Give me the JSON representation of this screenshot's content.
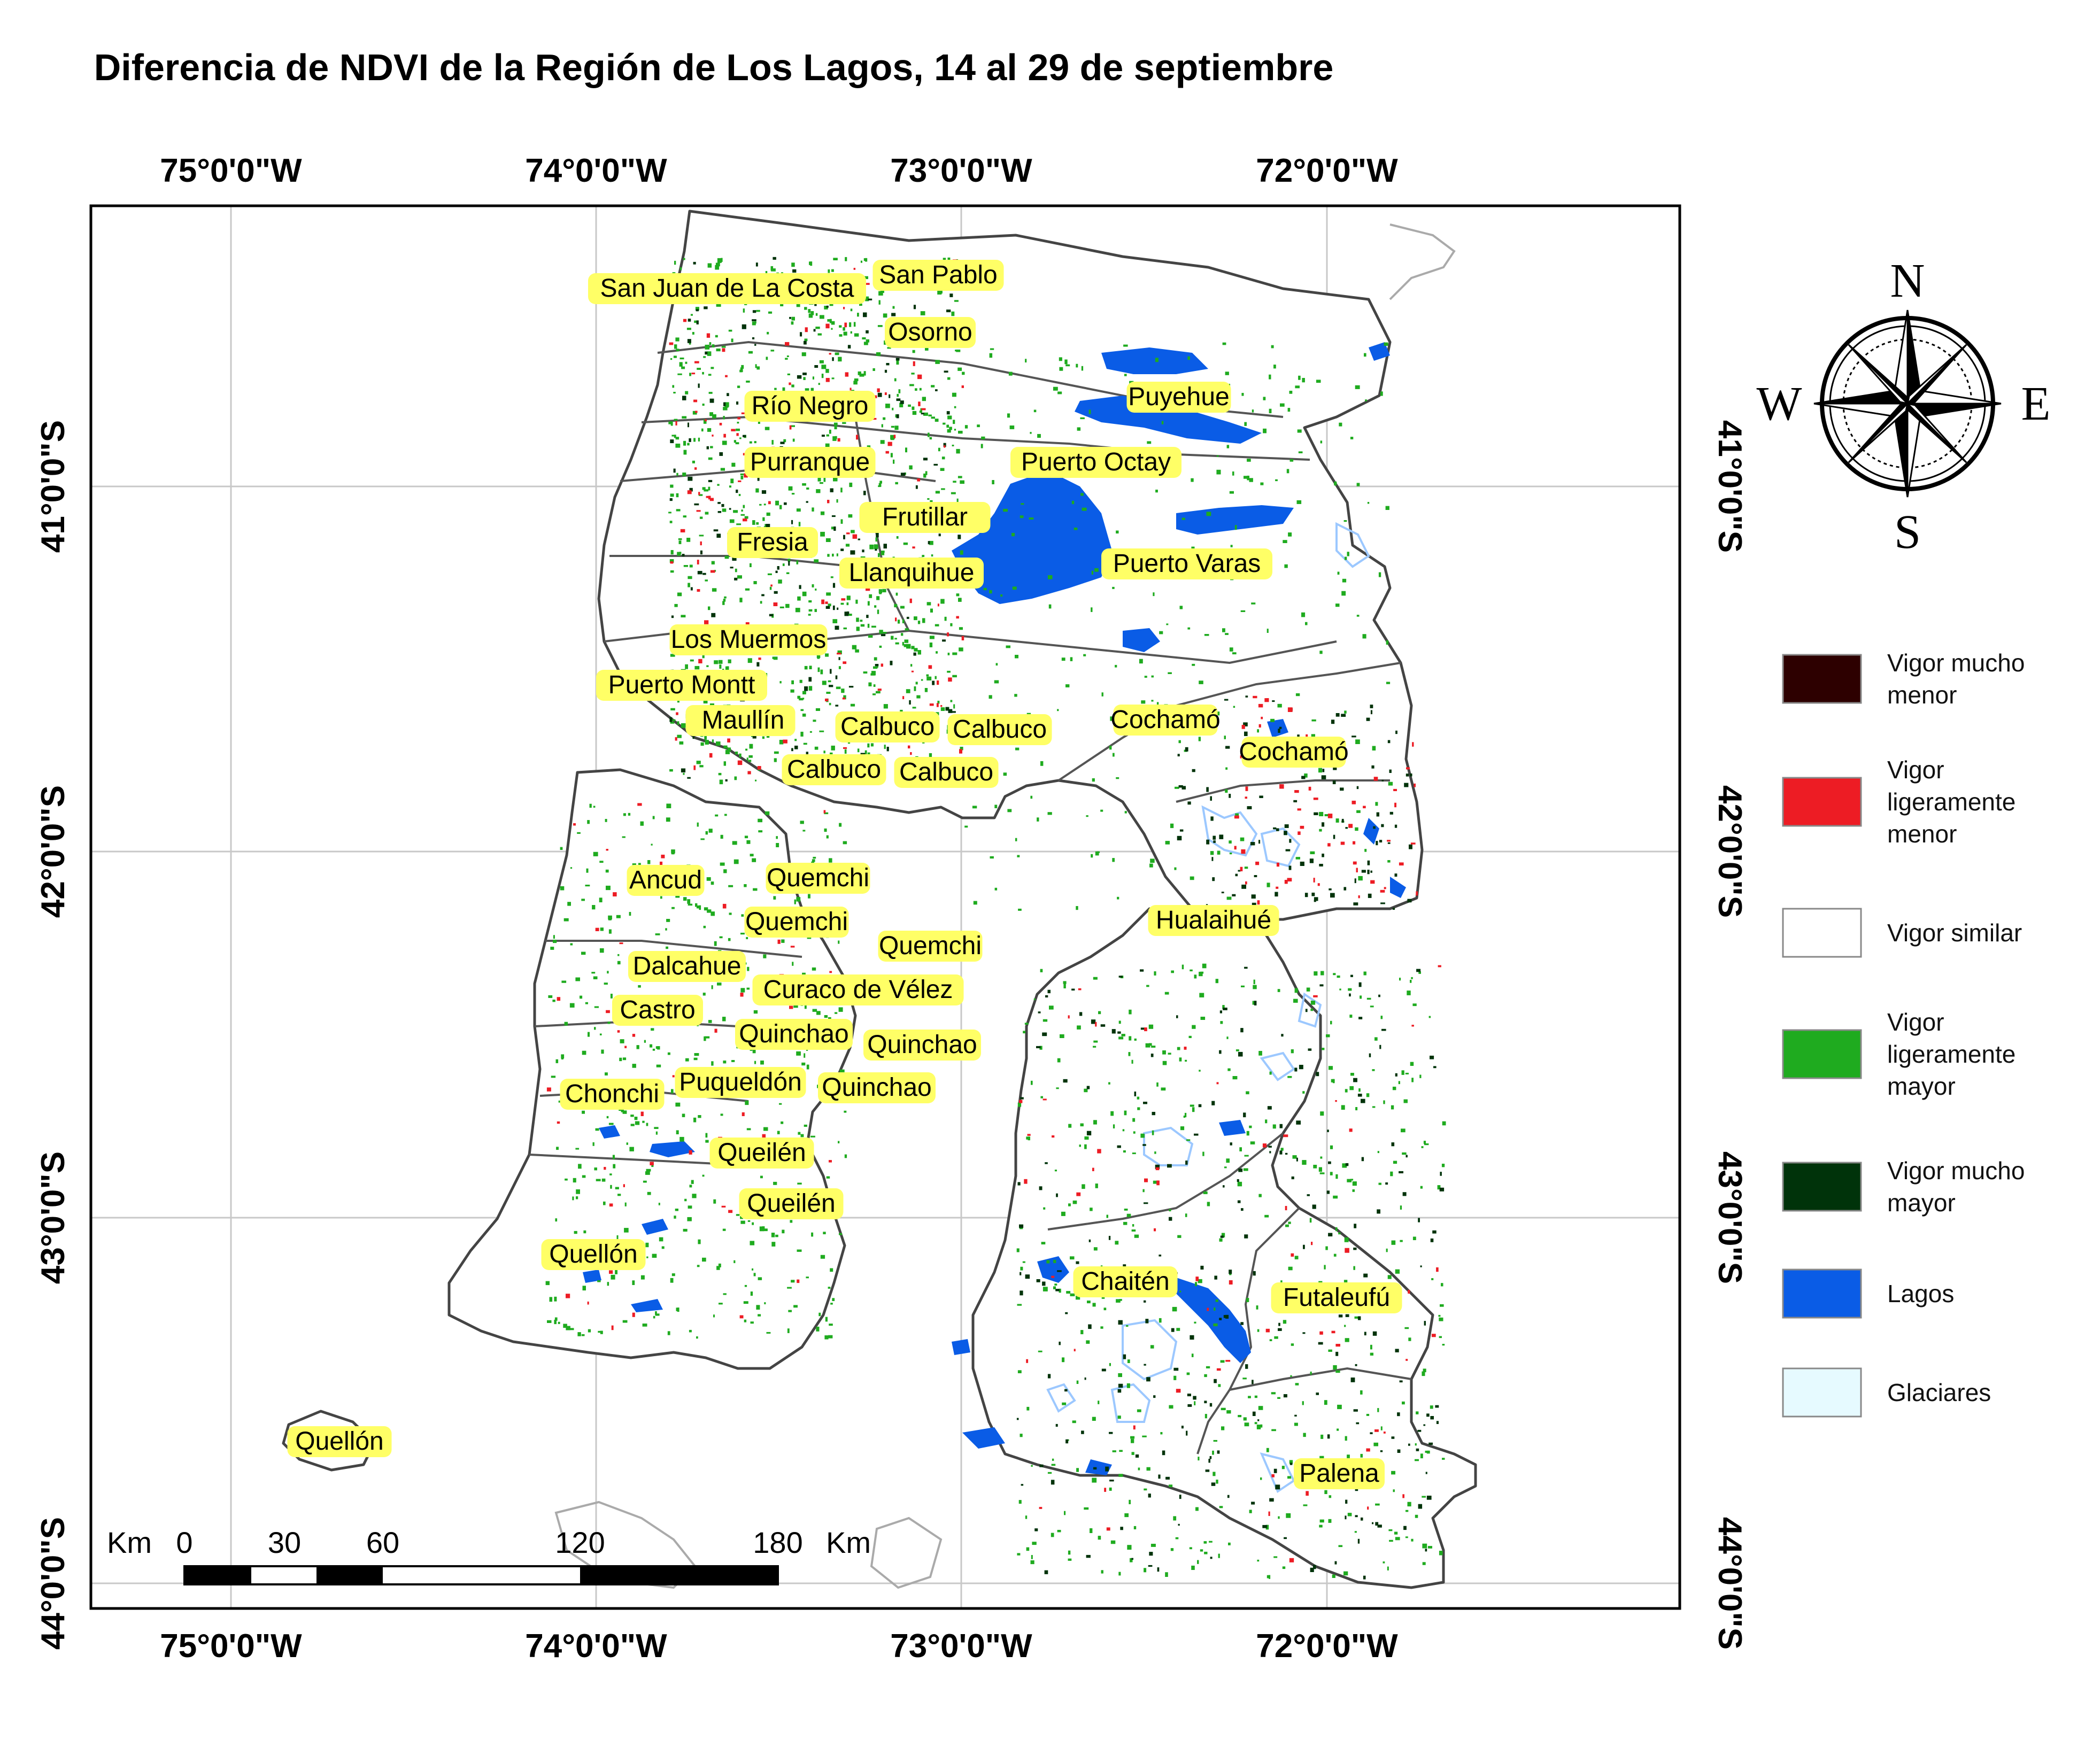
{
  "title": "Diferencia de NDVI de la Región de Los Lagos, 14 al 29 de septiembre",
  "longitudes": [
    "75°0'0\"W",
    "74°0'0\"W",
    "73°0'0\"W",
    "72°0'0\"W"
  ],
  "latitudes": [
    "41°0'0\"S",
    "42°0'0\"S",
    "43°0'0\"S",
    "44°0'0\"S"
  ],
  "places": [
    "San Juan de La Costa",
    "San Pablo",
    "Osorno",
    "Puyehue",
    "Río Negro",
    "Purranque",
    "Puerto Octay",
    "Frutillar",
    "Fresia",
    "Puerto Varas",
    "Llanquihue",
    "Los Muermos",
    "Puerto Montt",
    "Maullín",
    "Maullín",
    "Calbuco",
    "Calbuco",
    "Cochamó",
    "Cochamó",
    "Calbuco",
    "Calbuco",
    "Ancud",
    "Quemchi",
    "Quemchi",
    "Hualaihué",
    "Quemchi",
    "Dalcahue",
    "Curaco de Vélez",
    "Castro",
    "Quinchao",
    "Quinchao",
    "Puqueldón",
    "Quinchao",
    "Chonchi",
    "Queilén",
    "Queilén",
    "Quellón",
    "Chaitén",
    "Futaleufú",
    "Quellón",
    "Palena"
  ],
  "compass": {
    "n": "N",
    "s": "S",
    "e": "E",
    "w": "W"
  },
  "legend": [
    {
      "lines": [
        "Vigor mucho",
        "menor"
      ],
      "color": "#2d0000"
    },
    {
      "lines": [
        "Vigor",
        "ligeramente",
        "menor"
      ],
      "color": "#ed1c24"
    },
    {
      "lines": [
        "Vigor similar"
      ],
      "color": "#ffffff"
    },
    {
      "lines": [
        "Vigor",
        "ligeramente",
        "mayor"
      ],
      "color": "#1fab1f"
    },
    {
      "lines": [
        "Vigor mucho",
        "mayor"
      ],
      "color": "#00330a"
    },
    {
      "lines": [
        "Lagos"
      ],
      "color": "#0a5ce6"
    },
    {
      "lines": [
        "Glaciares"
      ],
      "color": "#e6faff"
    }
  ],
  "scalebar": {
    "unit": "Km",
    "ticks": [
      "0",
      "30",
      "60",
      "120",
      "180"
    ]
  },
  "colors": {
    "label_bg": "#ffff66",
    "lake": "#0a5ce6",
    "glacier": "#bcdcff",
    "green": "#1fab1f",
    "dark_green": "#00330a",
    "red": "#ed1c24"
  }
}
